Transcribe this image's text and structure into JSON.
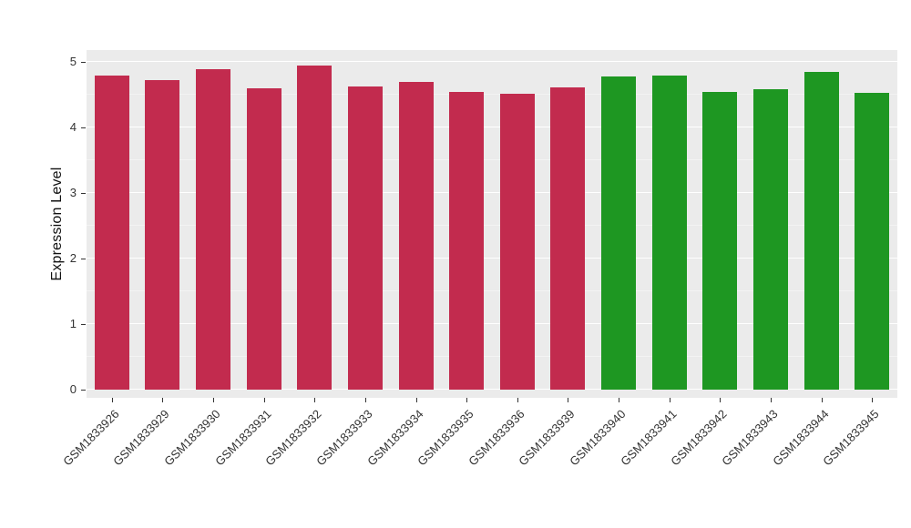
{
  "chart_data": {
    "type": "bar",
    "title": "",
    "xlabel": "",
    "ylabel": "Expression Level",
    "ylim": [
      0,
      5.18
    ],
    "yticks": [
      0,
      1,
      2,
      3,
      4,
      5
    ],
    "minor_yticks": [
      0.5,
      1.5,
      2.5,
      3.5,
      4.5
    ],
    "grid": true,
    "legend": "none",
    "figure_background": "#FFFFFF",
    "panel_background": "#EBEBEB",
    "major_grid_color": "#FFFFFF",
    "minor_grid_color": "#F3F3F3",
    "axis_text_color": "#333333",
    "categories": [
      "GSM1833926",
      "GSM1833929",
      "GSM1833930",
      "GSM1833931",
      "GSM1833932",
      "GSM1833933",
      "GSM1833934",
      "GSM1833935",
      "GSM1833936",
      "GSM1833939",
      "GSM1833940",
      "GSM1833941",
      "GSM1833942",
      "GSM1833943",
      "GSM1833944",
      "GSM1833945"
    ],
    "values": [
      4.79,
      4.72,
      4.89,
      4.6,
      4.94,
      4.63,
      4.69,
      4.54,
      4.51,
      4.61,
      4.78,
      4.79,
      4.54,
      4.58,
      4.85,
      4.53
    ],
    "bar_colors": [
      "#C22B4E",
      "#C22B4E",
      "#C22B4E",
      "#C22B4E",
      "#C22B4E",
      "#C22B4E",
      "#C22B4E",
      "#C22B4E",
      "#C22B4E",
      "#C22B4E",
      "#1E9722",
      "#1E9722",
      "#1E9722",
      "#1E9722",
      "#1E9722",
      "#1E9722"
    ]
  }
}
